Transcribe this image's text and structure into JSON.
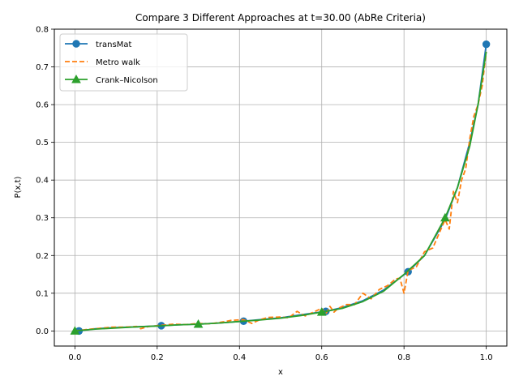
{
  "chart_data": {
    "type": "line",
    "title": "Compare 3 Different Approaches at t=30.00 (AbRe Criteria)",
    "xlabel": "x",
    "ylabel": "P(x,t)",
    "xlim": [
      -0.05,
      1.05
    ],
    "ylim": [
      -0.04,
      0.8
    ],
    "xticks": [
      0.0,
      0.2,
      0.4,
      0.6,
      0.8,
      1.0
    ],
    "xtick_labels": [
      "0.0",
      "0.2",
      "0.4",
      "0.6",
      "0.8",
      "1.0"
    ],
    "yticks": [
      0.0,
      0.1,
      0.2,
      0.3,
      0.4,
      0.5,
      0.6,
      0.7,
      0.8
    ],
    "ytick_labels": [
      "0.0",
      "0.1",
      "0.2",
      "0.3",
      "0.4",
      "0.5",
      "0.6",
      "0.7",
      "0.8"
    ],
    "grid": true,
    "legend_position": "top-left",
    "series": [
      {
        "name": "transMat",
        "color": "#1f77b4",
        "style": "solid",
        "marker": "circle",
        "x": [
          0.01,
          0.05,
          0.1,
          0.15,
          0.21,
          0.25,
          0.3,
          0.35,
          0.41,
          0.45,
          0.5,
          0.55,
          0.61,
          0.65,
          0.7,
          0.75,
          0.81,
          0.85,
          0.9,
          0.93,
          0.96,
          0.98,
          1.0
        ],
        "y": [
          0.0,
          0.006,
          0.009,
          0.011,
          0.014,
          0.016,
          0.018,
          0.021,
          0.026,
          0.03,
          0.035,
          0.043,
          0.052,
          0.062,
          0.08,
          0.108,
          0.157,
          0.2,
          0.295,
          0.38,
          0.5,
          0.6,
          0.76
        ],
        "marker_x": [
          0.01,
          0.21,
          0.41,
          0.61,
          0.81,
          1.0
        ],
        "marker_y": [
          0.0,
          0.014,
          0.026,
          0.052,
          0.157,
          0.76
        ]
      },
      {
        "name": "Metro walk",
        "color": "#ff7f0e",
        "style": "dashed",
        "marker": "none",
        "x": [
          0.0,
          0.03,
          0.06,
          0.09,
          0.12,
          0.15,
          0.16,
          0.18,
          0.21,
          0.24,
          0.27,
          0.3,
          0.33,
          0.36,
          0.38,
          0.41,
          0.42,
          0.43,
          0.45,
          0.47,
          0.5,
          0.52,
          0.54,
          0.56,
          0.58,
          0.6,
          0.61,
          0.62,
          0.63,
          0.64,
          0.66,
          0.68,
          0.7,
          0.72,
          0.74,
          0.76,
          0.78,
          0.79,
          0.8,
          0.81,
          0.83,
          0.85,
          0.87,
          0.89,
          0.9,
          0.91,
          0.92,
          0.93,
          0.94,
          0.95,
          0.96,
          0.97,
          0.98,
          0.99,
          1.0
        ],
        "y": [
          0.0,
          0.004,
          0.007,
          0.01,
          0.01,
          0.012,
          0.006,
          0.012,
          0.015,
          0.018,
          0.017,
          0.02,
          0.019,
          0.024,
          0.028,
          0.03,
          0.025,
          0.02,
          0.03,
          0.036,
          0.037,
          0.035,
          0.052,
          0.04,
          0.05,
          0.06,
          0.045,
          0.065,
          0.05,
          0.06,
          0.07,
          0.07,
          0.1,
          0.085,
          0.11,
          0.12,
          0.138,
          0.14,
          0.1,
          0.16,
          0.17,
          0.21,
          0.22,
          0.27,
          0.295,
          0.27,
          0.37,
          0.34,
          0.4,
          0.43,
          0.51,
          0.57,
          0.6,
          0.65,
          0.74
        ]
      },
      {
        "name": "Crank–Nicolson",
        "color": "#2ca02c",
        "style": "solid",
        "marker": "triangle",
        "x": [
          0.0,
          0.05,
          0.1,
          0.15,
          0.2,
          0.25,
          0.3,
          0.35,
          0.4,
          0.45,
          0.5,
          0.55,
          0.6,
          0.65,
          0.7,
          0.75,
          0.8,
          0.85,
          0.9,
          0.93,
          0.96,
          0.98,
          1.0
        ],
        "y": [
          0.0,
          0.005,
          0.008,
          0.011,
          0.013,
          0.016,
          0.018,
          0.021,
          0.025,
          0.029,
          0.034,
          0.041,
          0.05,
          0.06,
          0.078,
          0.105,
          0.15,
          0.2,
          0.3,
          0.38,
          0.49,
          0.6,
          0.74
        ],
        "marker_x": [
          0.0,
          0.3,
          0.6,
          0.9
        ],
        "marker_y": [
          0.0,
          0.018,
          0.05,
          0.3
        ]
      }
    ]
  }
}
